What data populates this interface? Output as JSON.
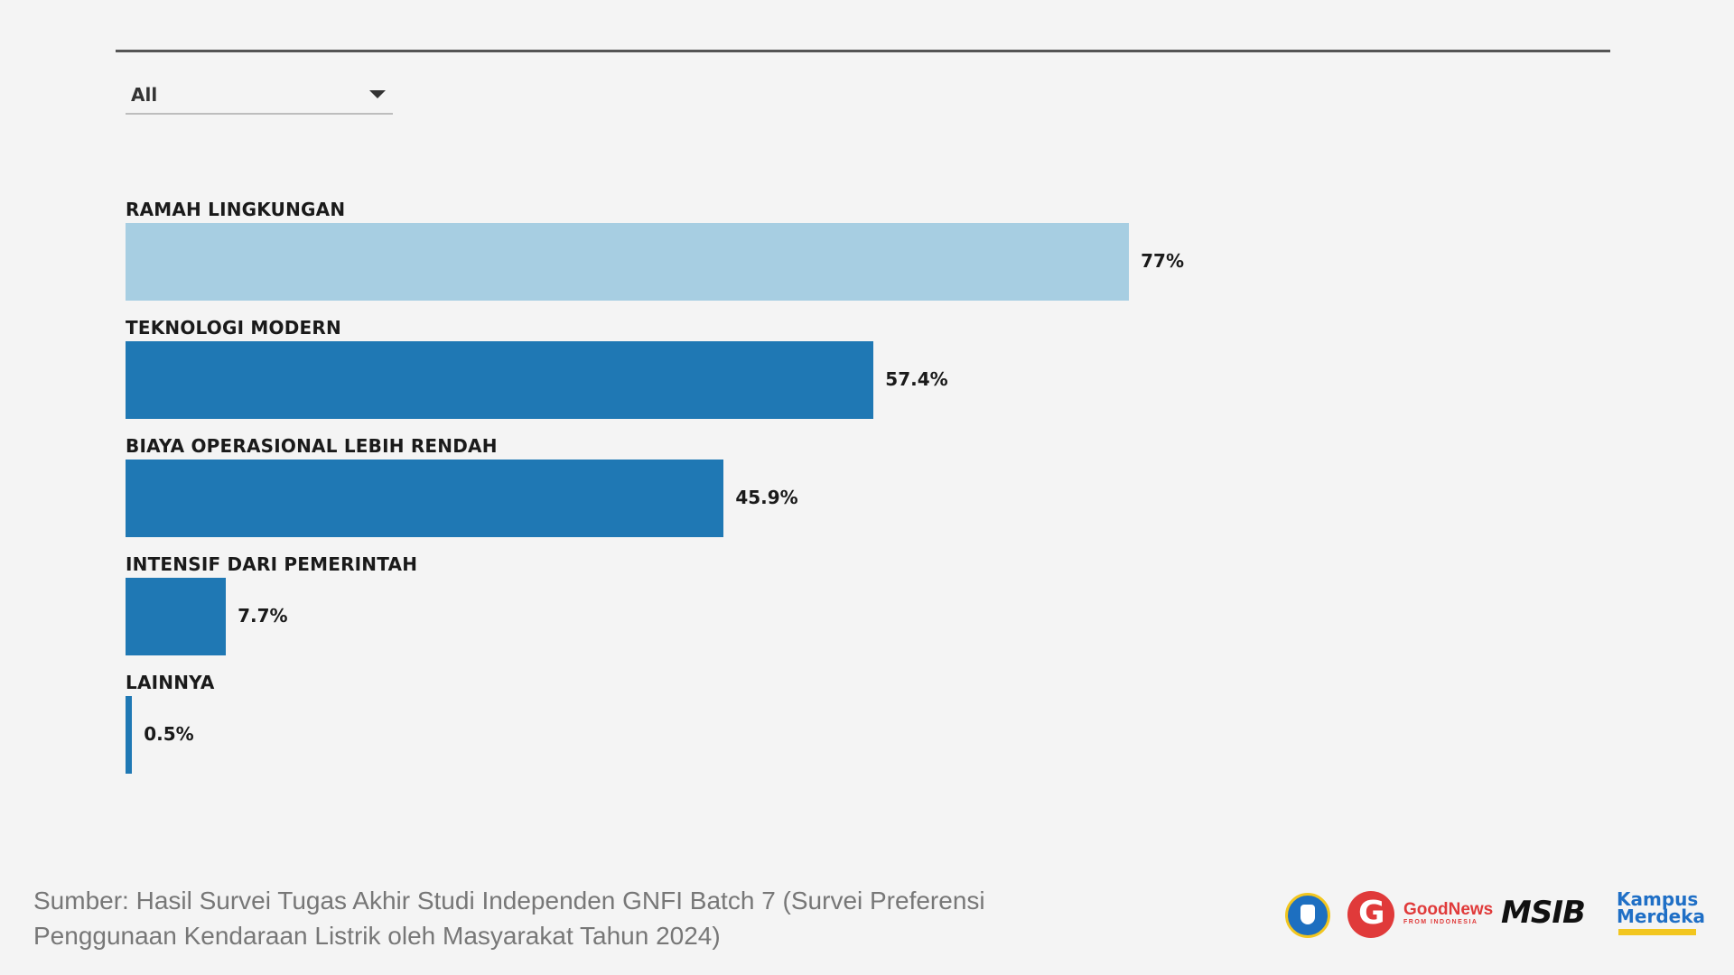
{
  "filter": {
    "selected": "All"
  },
  "chart_data": {
    "type": "bar",
    "orientation": "horizontal",
    "categories": [
      "RAMAH LINGKUNGAN",
      "TEKNOLOGI MODERN",
      "BIAYA OPERASIONAL LEBIH RENDAH",
      "INTENSIF DARI PEMERINTAH",
      "LAINNYA"
    ],
    "values": [
      77,
      57.4,
      45.9,
      7.7,
      0.5
    ],
    "value_labels": [
      "77%",
      "57.4%",
      "45.9%",
      "7.7%",
      "0.5%"
    ],
    "unit": "%",
    "xlim": [
      0,
      100
    ],
    "grid": false,
    "legend": "none",
    "colors": [
      "#a7cee2",
      "#1f78b4",
      "#1f78b4",
      "#1f78b4",
      "#1f78b4"
    ]
  },
  "source": {
    "text": "Sumber: Hasil Survei Tugas Akhir Studi Independen GNFI Batch 7 (Survei Preferensi Penggunaan Kendaraan Listrik oleh Masyarakat Tahun 2024)"
  },
  "logos": {
    "gnfi_name": "GoodNews",
    "gnfi_tagline": "FROM INDONESIA",
    "msib": "MSIB",
    "kampus_merdeka": "Kampus Merdeka"
  }
}
